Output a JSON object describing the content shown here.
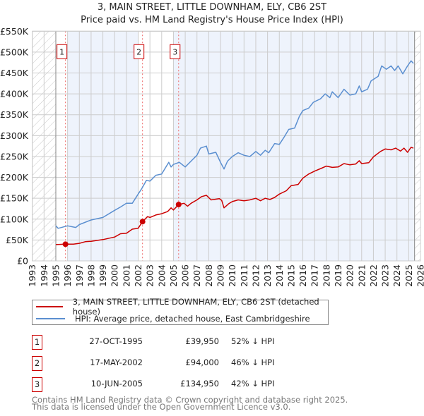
{
  "chart_data": {
    "type": "line",
    "title": "3, MAIN STREET, LITTLE DOWNHAM, ELY, CB6 2ST",
    "subtitle": "Price paid vs. HM Land Registry's House Price Index (HPI)",
    "xlim": [
      1993,
      2026
    ],
    "ylim": [
      0,
      550000
    ],
    "x_ticks": [
      "1993",
      "1994",
      "1995",
      "1996",
      "1997",
      "1998",
      "1999",
      "2000",
      "2001",
      "2002",
      "2003",
      "2004",
      "2005",
      "2006",
      "2007",
      "2008",
      "2009",
      "2010",
      "2011",
      "2012",
      "2013",
      "2014",
      "2015",
      "2016",
      "2017",
      "2018",
      "2019",
      "2020",
      "2021",
      "2022",
      "2023",
      "2024",
      "2025",
      "2026"
    ],
    "y_ticks": [
      {
        "v": 0,
        "label": "£0"
      },
      {
        "v": 50000,
        "label": "£50K"
      },
      {
        "v": 100000,
        "label": "£100K"
      },
      {
        "v": 150000,
        "label": "£150K"
      },
      {
        "v": 200000,
        "label": "£200K"
      },
      {
        "v": 250000,
        "label": "£250K"
      },
      {
        "v": 300000,
        "label": "£300K"
      },
      {
        "v": 350000,
        "label": "£350K"
      },
      {
        "v": 400000,
        "label": "£400K"
      },
      {
        "v": 450000,
        "label": "£450K"
      },
      {
        "v": 500000,
        "label": "£500K"
      },
      {
        "v": 550000,
        "label": "£550K"
      }
    ],
    "grid": true,
    "data_range": [
      1995,
      2025.5
    ],
    "series": [
      {
        "name": "3, MAIN STREET, LITTLE DOWNHAM, ELY, CB6 2ST (detached house)",
        "color": "#cc0000",
        "points": [
          [
            1995,
            39000
          ],
          [
            1995.82,
            39950
          ],
          [
            1996.5,
            40000
          ],
          [
            1997,
            42000
          ],
          [
            1997.5,
            46000
          ],
          [
            1998,
            47000
          ],
          [
            1999,
            51000
          ],
          [
            2000,
            57000
          ],
          [
            2000.5,
            65000
          ],
          [
            2001,
            66000
          ],
          [
            2001.5,
            76000
          ],
          [
            2002,
            78000
          ],
          [
            2002.37,
            94000
          ],
          [
            2002.8,
            106000
          ],
          [
            2003,
            104000
          ],
          [
            2003.5,
            110000
          ],
          [
            2004,
            113000
          ],
          [
            2004.5,
            118000
          ],
          [
            2004.8,
            127000
          ],
          [
            2005,
            122000
          ],
          [
            2005.44,
            134950
          ],
          [
            2005.9,
            138000
          ],
          [
            2006.2,
            131000
          ],
          [
            2006.5,
            138000
          ],
          [
            2007,
            146000
          ],
          [
            2007.4,
            154000
          ],
          [
            2007.8,
            157000
          ],
          [
            2008.2,
            146000
          ],
          [
            2008.9,
            149000
          ],
          [
            2009.1,
            145000
          ],
          [
            2009.3,
            127000
          ],
          [
            2009.7,
            137000
          ],
          [
            2010,
            142000
          ],
          [
            2010.5,
            146000
          ],
          [
            2011,
            144000
          ],
          [
            2011.5,
            146000
          ],
          [
            2012,
            150000
          ],
          [
            2012.4,
            144000
          ],
          [
            2012.8,
            150000
          ],
          [
            2013.2,
            147000
          ],
          [
            2013.6,
            152000
          ],
          [
            2014,
            160000
          ],
          [
            2014.6,
            168000
          ],
          [
            2015,
            180000
          ],
          [
            2015.6,
            183000
          ],
          [
            2016,
            198000
          ],
          [
            2016.5,
            208000
          ],
          [
            2017,
            215000
          ],
          [
            2017.6,
            222000
          ],
          [
            2018,
            227000
          ],
          [
            2018.5,
            224000
          ],
          [
            2019,
            225000
          ],
          [
            2019.5,
            233000
          ],
          [
            2020,
            230000
          ],
          [
            2020.5,
            232000
          ],
          [
            2020.8,
            240000
          ],
          [
            2021,
            233000
          ],
          [
            2021.6,
            235000
          ],
          [
            2022,
            249000
          ],
          [
            2022.6,
            262000
          ],
          [
            2023,
            268000
          ],
          [
            2023.5,
            266000
          ],
          [
            2023.9,
            270000
          ],
          [
            2024.3,
            263000
          ],
          [
            2024.6,
            270000
          ],
          [
            2024.9,
            260000
          ],
          [
            2025.2,
            272000
          ],
          [
            2025.4,
            270000
          ]
        ]
      },
      {
        "name": "HPI: Average price, detached house, East Cambridgeshire",
        "color": "#5b8fd0",
        "points": [
          [
            1995,
            84000
          ],
          [
            1995.2,
            78000
          ],
          [
            1996,
            84000
          ],
          [
            1996.7,
            80000
          ],
          [
            1997,
            87000
          ],
          [
            1998,
            98000
          ],
          [
            1999,
            104000
          ],
          [
            2000,
            121000
          ],
          [
            2000.5,
            129000
          ],
          [
            2001,
            138000
          ],
          [
            2001.5,
            138000
          ],
          [
            2002,
            160000
          ],
          [
            2002.3,
            173000
          ],
          [
            2002.7,
            193000
          ],
          [
            2003,
            191000
          ],
          [
            2003.5,
            205000
          ],
          [
            2004,
            208000
          ],
          [
            2004.6,
            236000
          ],
          [
            2004.8,
            225000
          ],
          [
            2005,
            231000
          ],
          [
            2005.5,
            236000
          ],
          [
            2006,
            225000
          ],
          [
            2006.5,
            239000
          ],
          [
            2007,
            253000
          ],
          [
            2007.3,
            270000
          ],
          [
            2007.8,
            275000
          ],
          [
            2008,
            256000
          ],
          [
            2008.6,
            260000
          ],
          [
            2009,
            236000
          ],
          [
            2009.3,
            220000
          ],
          [
            2009.6,
            239000
          ],
          [
            2010,
            250000
          ],
          [
            2010.5,
            259000
          ],
          [
            2011,
            253000
          ],
          [
            2011.5,
            250000
          ],
          [
            2012,
            262000
          ],
          [
            2012.4,
            253000
          ],
          [
            2012.8,
            265000
          ],
          [
            2013.1,
            259000
          ],
          [
            2013.6,
            281000
          ],
          [
            2014,
            279000
          ],
          [
            2014.4,
            296000
          ],
          [
            2014.8,
            315000
          ],
          [
            2015.3,
            318000
          ],
          [
            2015.7,
            346000
          ],
          [
            2016,
            360000
          ],
          [
            2016.5,
            366000
          ],
          [
            2016.9,
            380000
          ],
          [
            2017.5,
            388000
          ],
          [
            2017.9,
            400000
          ],
          [
            2018.3,
            391000
          ],
          [
            2018.5,
            405000
          ],
          [
            2019,
            391000
          ],
          [
            2019.5,
            411000
          ],
          [
            2020,
            397000
          ],
          [
            2020.5,
            400000
          ],
          [
            2020.8,
            419000
          ],
          [
            2021,
            405000
          ],
          [
            2021.5,
            411000
          ],
          [
            2021.8,
            431000
          ],
          [
            2022.4,
            442000
          ],
          [
            2022.7,
            467000
          ],
          [
            2023.1,
            459000
          ],
          [
            2023.5,
            467000
          ],
          [
            2023.8,
            456000
          ],
          [
            2024.1,
            467000
          ],
          [
            2024.5,
            448000
          ],
          [
            2024.9,
            467000
          ],
          [
            2025.2,
            479000
          ],
          [
            2025.4,
            473000
          ]
        ]
      }
    ],
    "sales": [
      {
        "label": "1",
        "x": 1995.82,
        "y": 39950
      },
      {
        "label": "2",
        "x": 2002.37,
        "y": 94000
      },
      {
        "label": "3",
        "x": 2005.44,
        "y": 134950
      }
    ],
    "shade_bands": [
      [
        1996,
        2002
      ],
      [
        2005,
        2025.5
      ]
    ]
  },
  "legend": {
    "property": "3, MAIN STREET, LITTLE DOWNHAM, ELY, CB6 2ST (detached house)",
    "hpi": "HPI: Average price, detached house, East Cambridgeshire"
  },
  "table": [
    {
      "num": "1",
      "date": "27-OCT-1995",
      "price": "£39,950",
      "pct": "52% ↓ HPI"
    },
    {
      "num": "2",
      "date": "17-MAY-2002",
      "price": "£94,000",
      "pct": "46% ↓ HPI"
    },
    {
      "num": "3",
      "date": "10-JUN-2005",
      "price": "£134,950",
      "pct": "42% ↓ HPI"
    }
  ],
  "footer": {
    "line1": "Contains HM Land Registry data © Crown copyright and database right 2025.",
    "line2": "This data is licensed under the Open Government Licence v3.0."
  }
}
